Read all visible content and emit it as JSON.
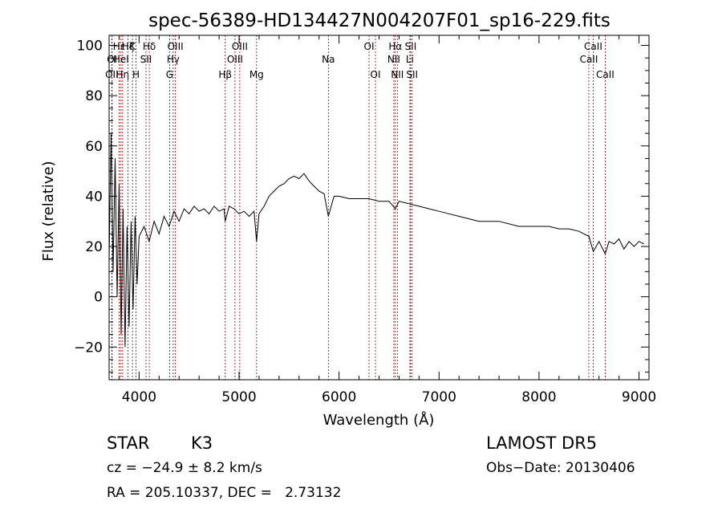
{
  "chart_data": {
    "type": "line",
    "title": "spec-56389-HD134427N004207F01_sp16-229.fits",
    "xlabel": "Wavelength (Å)",
    "ylabel": "Flux (relative)",
    "xlim": [
      3700,
      9100
    ],
    "ylim": [
      -33,
      104
    ],
    "xticks": [
      4000,
      5000,
      6000,
      7000,
      8000,
      9000
    ],
    "yticks": [
      -20,
      0,
      20,
      40,
      60,
      80,
      100
    ],
    "grid": false,
    "series": [
      {
        "x": [
          3700,
          3720,
          3740,
          3760,
          3780,
          3800,
          3820,
          3840,
          3860,
          3880,
          3900,
          3920,
          3940,
          3960,
          3980,
          4000,
          4050,
          4100,
          4150,
          4200,
          4250,
          4300,
          4350,
          4400,
          4450,
          4500,
          4550,
          4600,
          4650,
          4700,
          4750,
          4800,
          4850,
          4861,
          4900,
          4950,
          5000,
          5050,
          5100,
          5150,
          5175,
          5200,
          5250,
          5300,
          5350,
          5400,
          5450,
          5500,
          5550,
          5600,
          5650,
          5700,
          5750,
          5800,
          5850,
          5893,
          5950,
          6000,
          6100,
          6200,
          6300,
          6400,
          6500,
          6563,
          6600,
          6700,
          6800,
          6900,
          7000,
          7100,
          7200,
          7300,
          7400,
          7500,
          7600,
          7700,
          7800,
          7900,
          8000,
          8100,
          8200,
          8300,
          8400,
          8500,
          8542,
          8600,
          8662,
          8700,
          8750,
          8800,
          8850,
          8900,
          8950,
          9000,
          9050
        ],
        "y": [
          15,
          65,
          10,
          55,
          0,
          45,
          -15,
          35,
          -20,
          28,
          -12,
          30,
          -5,
          32,
          5,
          24,
          28,
          22,
          30,
          25,
          32,
          28,
          34,
          30,
          35,
          33,
          36,
          34,
          35,
          33,
          36,
          34,
          35,
          30,
          36,
          35,
          33,
          34,
          32,
          34,
          22,
          33,
          36,
          40,
          42,
          44,
          45,
          47,
          48,
          47,
          49,
          46,
          44,
          42,
          41,
          32,
          40,
          40,
          39,
          39,
          39,
          38,
          38,
          35,
          38,
          37,
          36,
          35,
          34,
          33,
          32,
          31,
          30,
          30,
          30,
          29,
          28,
          28,
          28,
          28,
          27,
          27,
          26,
          24,
          18,
          22,
          17,
          22,
          21,
          23,
          19,
          22,
          20,
          22,
          21
        ]
      }
    ],
    "lines": [
      {
        "label": "OII",
        "wave": 3727,
        "row": 3,
        "color": "#8b0000"
      },
      {
        "label": "Hη",
        "wave": 3835,
        "row": 3,
        "color": "#8b0000"
      },
      {
        "label": "Hζ",
        "wave": 3889,
        "row": 1,
        "color": "#8b0000"
      },
      {
        "label": "OI",
        "wave": 3730,
        "row": 2,
        "color": "#8b0000"
      },
      {
        "label": "HeI",
        "wave": 3819,
        "row": 2,
        "color": "#8b0000"
      },
      {
        "label": "Hε",
        "wave": 3800,
        "row": 1,
        "color": "#8b0000"
      },
      {
        "label": "K",
        "wave": 3934,
        "row": 1,
        "color": "#8b0000"
      },
      {
        "label": "H",
        "wave": 3969,
        "row": 3,
        "color": "#8b0000"
      },
      {
        "label": "Hδ",
        "wave": 4102,
        "row": 1,
        "color": "#8b0000"
      },
      {
        "label": "SII",
        "wave": 4069,
        "row": 2,
        "color": "#8b0000"
      },
      {
        "label": "G",
        "wave": 4305,
        "row": 3,
        "color": "#8b0000"
      },
      {
        "label": "Hγ",
        "wave": 4341,
        "row": 2,
        "color": "#8b0000"
      },
      {
        "label": "OIII",
        "wave": 4363,
        "row": 1,
        "color": "#8b0000"
      },
      {
        "label": "Hβ",
        "wave": 4861,
        "row": 3,
        "color": "#8b0000"
      },
      {
        "label": "OIII",
        "wave": 4959,
        "row": 2,
        "color": "#8b0000"
      },
      {
        "label": "OIII",
        "wave": 5007,
        "row": 1,
        "color": "#8b0000"
      },
      {
        "label": "Mg",
        "wave": 5175,
        "row": 3,
        "color": "#8b0000"
      },
      {
        "label": "Na",
        "wave": 5893,
        "row": 2,
        "color": "#8b0000"
      },
      {
        "label": "OI",
        "wave": 6300,
        "row": 1,
        "color": "#8b0000"
      },
      {
        "label": "OI",
        "wave": 6364,
        "row": 3,
        "color": "#8b0000"
      },
      {
        "label": "NII",
        "wave": 6548,
        "row": 2,
        "color": "#8b0000"
      },
      {
        "label": "Hα",
        "wave": 6563,
        "row": 1,
        "color": "#8b0000"
      },
      {
        "label": "NII",
        "wave": 6583,
        "row": 3,
        "color": "#8b0000"
      },
      {
        "label": "Li",
        "wave": 6708,
        "row": 2,
        "color": "#8b0000"
      },
      {
        "label": "SII",
        "wave": 6716,
        "row": 1,
        "color": "#8b0000"
      },
      {
        "label": "SII",
        "wave": 6731,
        "row": 3,
        "color": "#8b0000"
      },
      {
        "label": "CaII",
        "wave": 8498,
        "row": 2,
        "color": "#8b0000"
      },
      {
        "label": "CaII",
        "wave": 8542,
        "row": 1,
        "color": "#8b0000"
      },
      {
        "label": "CaII",
        "wave": 8662,
        "row": 3,
        "color": "#8b0000"
      }
    ]
  },
  "info": {
    "object_class": "STAR",
    "subclass": "K3",
    "survey": "LAMOST DR5",
    "cz": "cz = −24.9 ± 8.2 km/s",
    "obs_date": "Obs−Date: 20130406",
    "radec": "RA = 205.10337, DEC =   2.73132"
  },
  "colors": {
    "spectrum": "#000000",
    "line_markers": "#8b0000",
    "background": "#ffffff"
  }
}
